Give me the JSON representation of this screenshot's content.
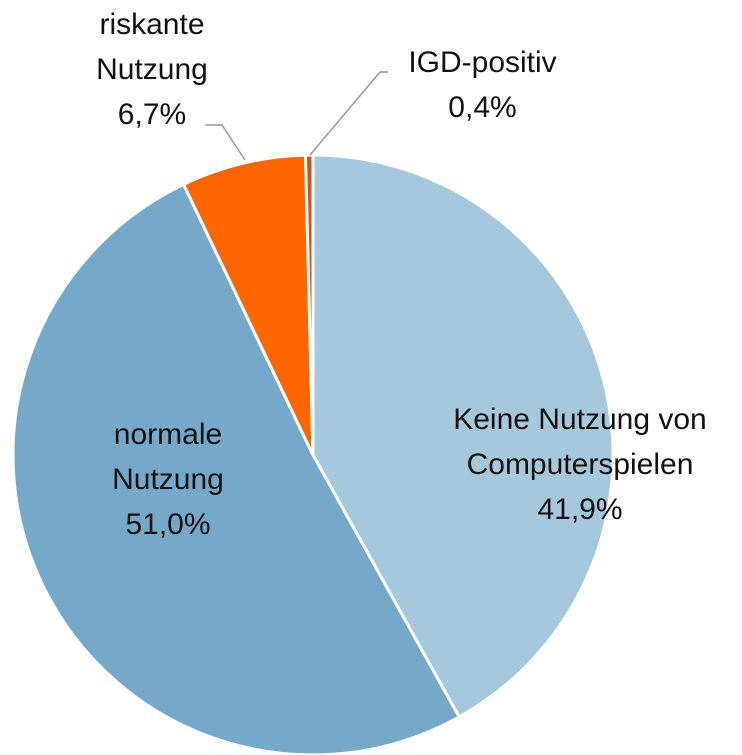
{
  "chart_data": {
    "type": "pie",
    "categories": [
      "Keine Nutzung von Computerspielen",
      "normale Nutzung",
      "riskante Nutzung",
      "IGD-positiv"
    ],
    "values": [
      41.9,
      51.0,
      6.7,
      0.4
    ],
    "value_labels": [
      "41,9%",
      "51,0%",
      "6,7%",
      "0,4%"
    ],
    "colors": [
      "#a5c8dc",
      "#76a9c9",
      "#ff6600",
      "#c9561e"
    ]
  }
}
